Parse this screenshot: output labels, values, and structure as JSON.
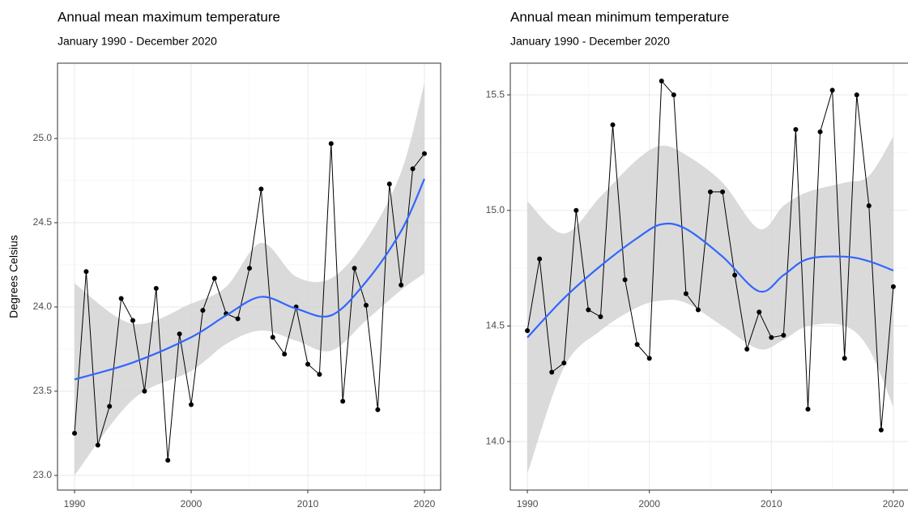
{
  "chart_data": [
    {
      "type": "line",
      "title": "Annual mean maximum temperature",
      "subtitle": "January 1990 - December 2020",
      "y_label": "Degrees Celsius",
      "x": [
        1990,
        1991,
        1992,
        1993,
        1994,
        1995,
        1996,
        1997,
        1998,
        1999,
        2000,
        2001,
        2002,
        2003,
        2004,
        2005,
        2006,
        2007,
        2008,
        2009,
        2010,
        2011,
        2012,
        2013,
        2014,
        2015,
        2016,
        2017,
        2018,
        2019,
        2020
      ],
      "series": [
        {
          "color": "#000000",
          "values": [
            23.25,
            24.21,
            23.18,
            23.41,
            24.05,
            23.92,
            23.5,
            24.11,
            23.09,
            23.84,
            23.42,
            23.98,
            24.17,
            23.96,
            23.93,
            24.23,
            24.7,
            23.82,
            23.72,
            24.0,
            23.66,
            23.6,
            24.97,
            23.44,
            24.23,
            24.01,
            23.39,
            24.73,
            24.13,
            24.82,
            24.91
          ]
        }
      ],
      "smooth": {
        "color": "#3366FF",
        "band_color": "#d3d3d3",
        "x": [
          1990,
          1995,
          2000,
          2003,
          2006,
          2009,
          2012,
          2015,
          2018,
          2020
        ],
        "values": [
          23.57,
          23.67,
          23.82,
          23.95,
          24.06,
          23.99,
          23.95,
          24.15,
          24.45,
          24.76
        ],
        "lower": [
          23.0,
          23.45,
          23.62,
          23.78,
          23.86,
          23.8,
          23.74,
          23.92,
          24.1,
          24.2
        ],
        "upper": [
          24.14,
          23.9,
          24.02,
          24.12,
          24.38,
          24.18,
          24.17,
          24.4,
          24.8,
          25.33
        ]
      },
      "xlim": [
        1988.54,
        2021.39
      ],
      "xticks": [
        1990,
        2000,
        2010,
        2020
      ],
      "ylim": [
        22.913,
        25.447
      ],
      "yticks": [
        {
          "value": 23,
          "label": "23.0"
        },
        {
          "value": 23.5,
          "label": "23.5"
        },
        {
          "value": 24,
          "label": "24.0"
        },
        {
          "value": 24.5,
          "label": "24.5"
        },
        {
          "value": 25,
          "label": "25.0"
        }
      ],
      "grid": true
    },
    {
      "type": "line",
      "title": "Annual mean minimum temperature",
      "subtitle": "January 1990 - December 2020",
      "x": [
        1990,
        1991,
        1992,
        1993,
        1994,
        1995,
        1996,
        1997,
        1998,
        1999,
        2000,
        2001,
        2002,
        2003,
        2004,
        2005,
        2006,
        2007,
        2008,
        2009,
        2010,
        2011,
        2012,
        2013,
        2014,
        2015,
        2016,
        2017,
        2018,
        2019,
        2020
      ],
      "series": [
        {
          "color": "#000000",
          "values": [
            14.48,
            14.79,
            14.3,
            14.34,
            15.0,
            14.57,
            14.54,
            15.37,
            14.7,
            14.42,
            14.36,
            15.56,
            15.5,
            14.64,
            14.57,
            15.08,
            15.08,
            14.72,
            14.4,
            14.56,
            14.45,
            14.46,
            15.35,
            14.14,
            15.34,
            15.52,
            14.36,
            15.5,
            15.02,
            14.05,
            14.67
          ]
        }
      ],
      "smooth": {
        "color": "#3366FF",
        "band_color": "#d3d3d3",
        "x": [
          1990,
          1993,
          1996,
          1999,
          2001,
          2003,
          2006,
          2009,
          2011,
          2013,
          2016,
          2018,
          2020
        ],
        "values": [
          14.45,
          14.62,
          14.76,
          14.88,
          14.94,
          14.92,
          14.8,
          14.65,
          14.72,
          14.79,
          14.8,
          14.78,
          14.74
        ],
        "lower": [
          13.86,
          14.32,
          14.48,
          14.58,
          14.61,
          14.6,
          14.5,
          14.4,
          14.44,
          14.5,
          14.5,
          14.4,
          14.15
        ],
        "upper": [
          15.04,
          14.9,
          15.06,
          15.22,
          15.28,
          15.24,
          15.12,
          14.92,
          15.02,
          15.08,
          15.12,
          15.15,
          15.32
        ]
      },
      "xlim": [
        1988.6,
        2021.4
      ],
      "xticks": [
        1990,
        2000,
        2010,
        2020
      ],
      "ylim": [
        13.79,
        15.637
      ],
      "yticks": [
        {
          "value": 14,
          "label": "14.0"
        },
        {
          "value": 14.5,
          "label": "14.5"
        },
        {
          "value": 15,
          "label": "15.0"
        },
        {
          "value": 15.5,
          "label": "15.5"
        }
      ],
      "grid": true
    }
  ]
}
